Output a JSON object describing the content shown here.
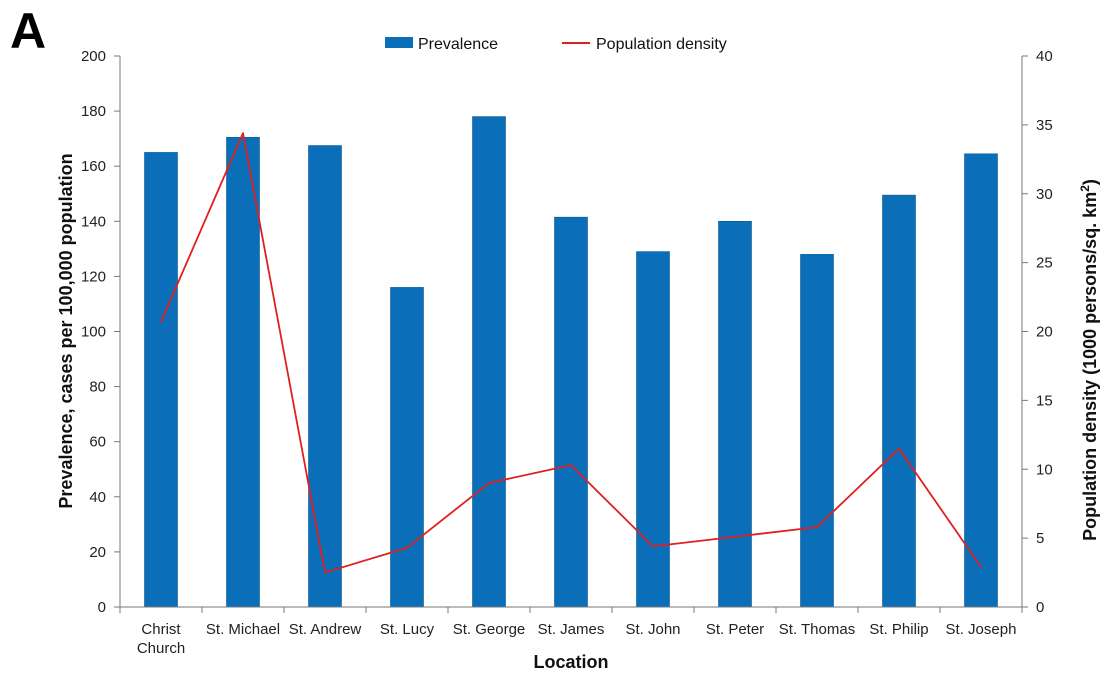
{
  "panel_label": "A",
  "chart_data": {
    "type": "bar",
    "categories": [
      "Christ Church",
      "St. Michael",
      "St. Andrew",
      "St. Lucy",
      "St. George",
      "St. James",
      "St. John",
      "St. Peter",
      "St. Thomas",
      "St. Philip",
      "St. Joseph"
    ],
    "category_lines": [
      [
        "Christ",
        "Church"
      ],
      [
        "St. Michael"
      ],
      [
        "St. Andrew"
      ],
      [
        "St. Lucy"
      ],
      [
        "St. George"
      ],
      [
        "St. James"
      ],
      [
        "St. John"
      ],
      [
        "St. Peter"
      ],
      [
        "St. Thomas"
      ],
      [
        "St. Philip"
      ],
      [
        "St. Joseph"
      ]
    ],
    "series": [
      {
        "name": "Prevalence",
        "type": "bar",
        "axis": "left",
        "color": "#0a6fb8",
        "values": [
          165,
          170.5,
          167.5,
          116,
          178,
          141.5,
          129,
          140,
          128,
          149.5,
          164.5
        ]
      },
      {
        "name": "Population density",
        "type": "line",
        "axis": "right",
        "color": "#e02020",
        "values": [
          20.7,
          34.4,
          2.5,
          4.3,
          9.0,
          10.3,
          4.4,
          5.1,
          5.8,
          11.5,
          2.9
        ]
      }
    ],
    "xlabel": "Location",
    "ylabel_left": "Prevalence, cases per 100,000 population",
    "ylabel_right_main": "Population density (1000 persons/sq. km",
    "ylabel_right_sup": "2",
    "ylabel_right_close": ")",
    "ylim_left": [
      0,
      200
    ],
    "yticks_left": [
      0,
      20,
      40,
      60,
      80,
      100,
      120,
      140,
      160,
      180,
      200
    ],
    "ylim_right": [
      0,
      40
    ],
    "yticks_right": [
      0,
      5,
      10,
      15,
      20,
      25,
      30,
      35,
      40
    ],
    "legend_position": "top-center",
    "grid": false
  }
}
